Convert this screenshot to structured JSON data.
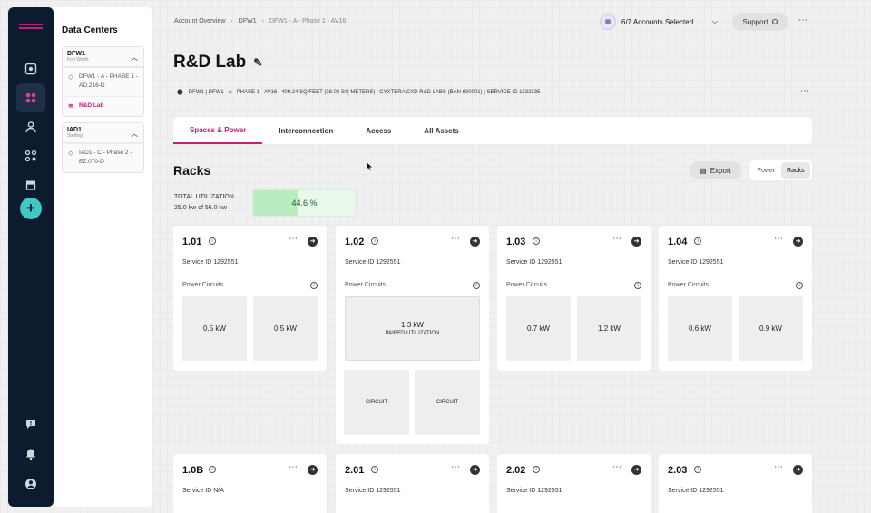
{
  "sidebar": {
    "items": [
      "dashboard-icon",
      "apps-icon",
      "user-icon",
      "network-icon",
      "store-icon"
    ],
    "bottom": [
      "chat-icon",
      "bell-icon",
      "profile-icon"
    ]
  },
  "datacenters": {
    "title": "Data Centers",
    "groups": [
      {
        "code": "DFW1",
        "city": "Fort Worth",
        "items": [
          {
            "label": "DFW1 - A - PHASE 1 - AD.216-D",
            "selected": false
          },
          {
            "label": "R&D Lab",
            "selected": true
          }
        ]
      },
      {
        "code": "IAD1",
        "city": "Sterling",
        "items": [
          {
            "label": "IAD1 - C - Phase 2 - EZ.070-D",
            "selected": false
          }
        ]
      }
    ]
  },
  "breadcrumb": [
    "Account Overview",
    "DFW1",
    "DFW1 - A - Phase 1 - AV16"
  ],
  "header": {
    "accounts": "6/7 Accounts Selected",
    "support": "Support"
  },
  "page": {
    "title": "R&D Lab",
    "info": "DFW1 | DFW1 - A - PHASE 1 - AV16 | 409.24 SQ FEET (38.03 SQ METERS) | CYXTERA CXD R&D LABS (BAN 600001) | SERVICE ID 1332335"
  },
  "tabs": [
    "Spaces & Power",
    "Interconnection",
    "Access",
    "All Assets"
  ],
  "racks": {
    "title": "Racks",
    "export": "Export",
    "toggle": [
      "Power",
      "Racks"
    ],
    "util_label": "TOTAL UTILIZATION",
    "util_sub": "25.0 kw of 56.0 kw",
    "util_value": "44.6 %",
    "util_fraction": 0.446,
    "power_circuits": "Power Circuits",
    "cards": [
      {
        "num": "1.01",
        "sid": "Service ID 1292551",
        "boxes": [
          "0.5 kW",
          "0.5 kW"
        ]
      },
      {
        "num": "1.02",
        "sid": "Service ID 1292551",
        "paired": "1.3 kW",
        "paired_label": "PAIRED UTILIZATION",
        "circuits": [
          "CIRCUIT",
          "CIRCUIT"
        ]
      },
      {
        "num": "1.03",
        "sid": "Service ID 1292551",
        "boxes": [
          "0.7 kW",
          "1.2 kW"
        ]
      },
      {
        "num": "1.04",
        "sid": "Service ID 1292551",
        "boxes": [
          "0.6 kW",
          "0.9 kW"
        ]
      },
      {
        "num": "1.0B",
        "sid": "Service ID N/A"
      },
      {
        "num": "2.01",
        "sid": "Service ID 1292551"
      },
      {
        "num": "2.02",
        "sid": "Service ID 1292551"
      },
      {
        "num": "2.03",
        "sid": "Service ID 1292551"
      }
    ]
  },
  "colors": {
    "accent": "#c0207a",
    "rail": "#0d1b2e",
    "add": "#41c7c2",
    "util": "#b9ecc1"
  }
}
